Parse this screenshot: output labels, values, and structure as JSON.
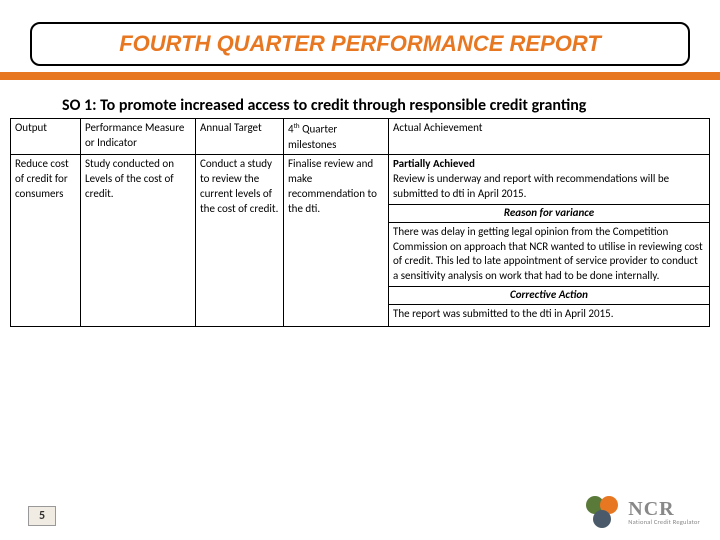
{
  "title": "FOURTH QUARTER PERFORMANCE REPORT",
  "subtitle": "SO 1: To promote increased access to credit through responsible credit granting",
  "table": {
    "headers": {
      "output": "Output",
      "measure": "Performance Measure or Indicator",
      "target": "Annual Target",
      "milestones_pre": "4",
      "milestones_sup": "th",
      "milestones_post": " Quarter milestones",
      "achievement": "Actual Achievement"
    },
    "row": {
      "output": "Reduce cost of credit for consumers",
      "measure": "Study conducted on Levels of the cost of credit.",
      "target": "Conduct a study to review the current levels of the cost of credit.",
      "milestones": "Finalise review and make recommendation to the dti.",
      "achievement_bold": "Partially Achieved",
      "achievement_text": "Review is underway and report with recommendations will be submitted to dti in April 2015.",
      "reason_header": "Reason for variance",
      "reason_text": "There was delay in getting legal opinion from the Competition Commission on approach that NCR wanted to utilise in reviewing cost of credit. This led to late appointment of  service provider to conduct a sensitivity analysis on work that had to be done internally.",
      "corrective_header": "Corrective Action",
      "corrective_text": "The report was submitted to the dti in April 2015."
    }
  },
  "page_number": "5",
  "logo": {
    "ncr": "NCR",
    "sub": "National Credit Regulator"
  },
  "colors": {
    "accent": "#e87722"
  }
}
